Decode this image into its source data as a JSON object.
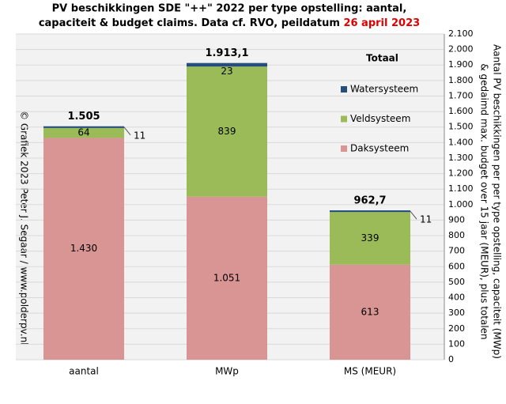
{
  "chart_data": {
    "type": "stacked_bar",
    "title": [
      "PV beschikkingen  SDE \"++\" 2022 per type opstelling: aantal,",
      "capaciteit & budget claims. Data cf. RVO, peildatum "
    ],
    "title_highlight": "26 april 2023",
    "title_highlight_color": "#e00000",
    "y_axis_label": [
      "Aantal PV beschikkingen per per type opstelling, capaciteit (MWp)",
      "& gedaimd max. budget over 15 jaar (MEUR), plus totalen"
    ],
    "annotation": "© Grafiek 2023 Peter J. Segaar / www.polderpv.nl",
    "legend_title": "Totaal",
    "categories": [
      "aantal",
      "MWp",
      "MS (MEUR)"
    ],
    "series": [
      {
        "name": "Daksysteem",
        "color": "#d99594",
        "values": [
          1430,
          1051,
          613
        ],
        "value_labels": [
          "1.430",
          "1.051",
          "613"
        ]
      },
      {
        "name": "Veldsysteem",
        "color": "#9bbb59",
        "values": [
          64,
          839,
          339
        ]
      },
      {
        "name": "Watersysteem",
        "color": "#254e7a",
        "values": [
          11,
          23,
          11
        ]
      }
    ],
    "totals": {
      "values": [
        1505,
        1913.1,
        962.7
      ],
      "value_labels": [
        "1.505",
        "1.913,1",
        "962,7"
      ]
    },
    "ylim": [
      0,
      2100
    ],
    "yticks": [
      0,
      100,
      200,
      300,
      400,
      500,
      600,
      700,
      800,
      900,
      {
        "value": 1000,
        "label": "1.000"
      },
      {
        "value": 1100,
        "label": "1.100"
      },
      {
        "value": 1200,
        "label": "1.200"
      },
      {
        "value": 1300,
        "label": "1.300"
      },
      {
        "value": 1400,
        "label": "1.400"
      },
      {
        "value": 1500,
        "label": "1.500"
      },
      {
        "value": 1600,
        "label": "1.600"
      },
      {
        "value": 1700,
        "label": "1.700"
      },
      {
        "value": 1800,
        "label": "1.800"
      },
      {
        "value": 1900,
        "label": "1.900"
      },
      {
        "value": 2000,
        "label": "2.000"
      },
      {
        "value": 2100,
        "label": "2.100"
      }
    ],
    "y_axis_side": "right",
    "grid": true
  }
}
